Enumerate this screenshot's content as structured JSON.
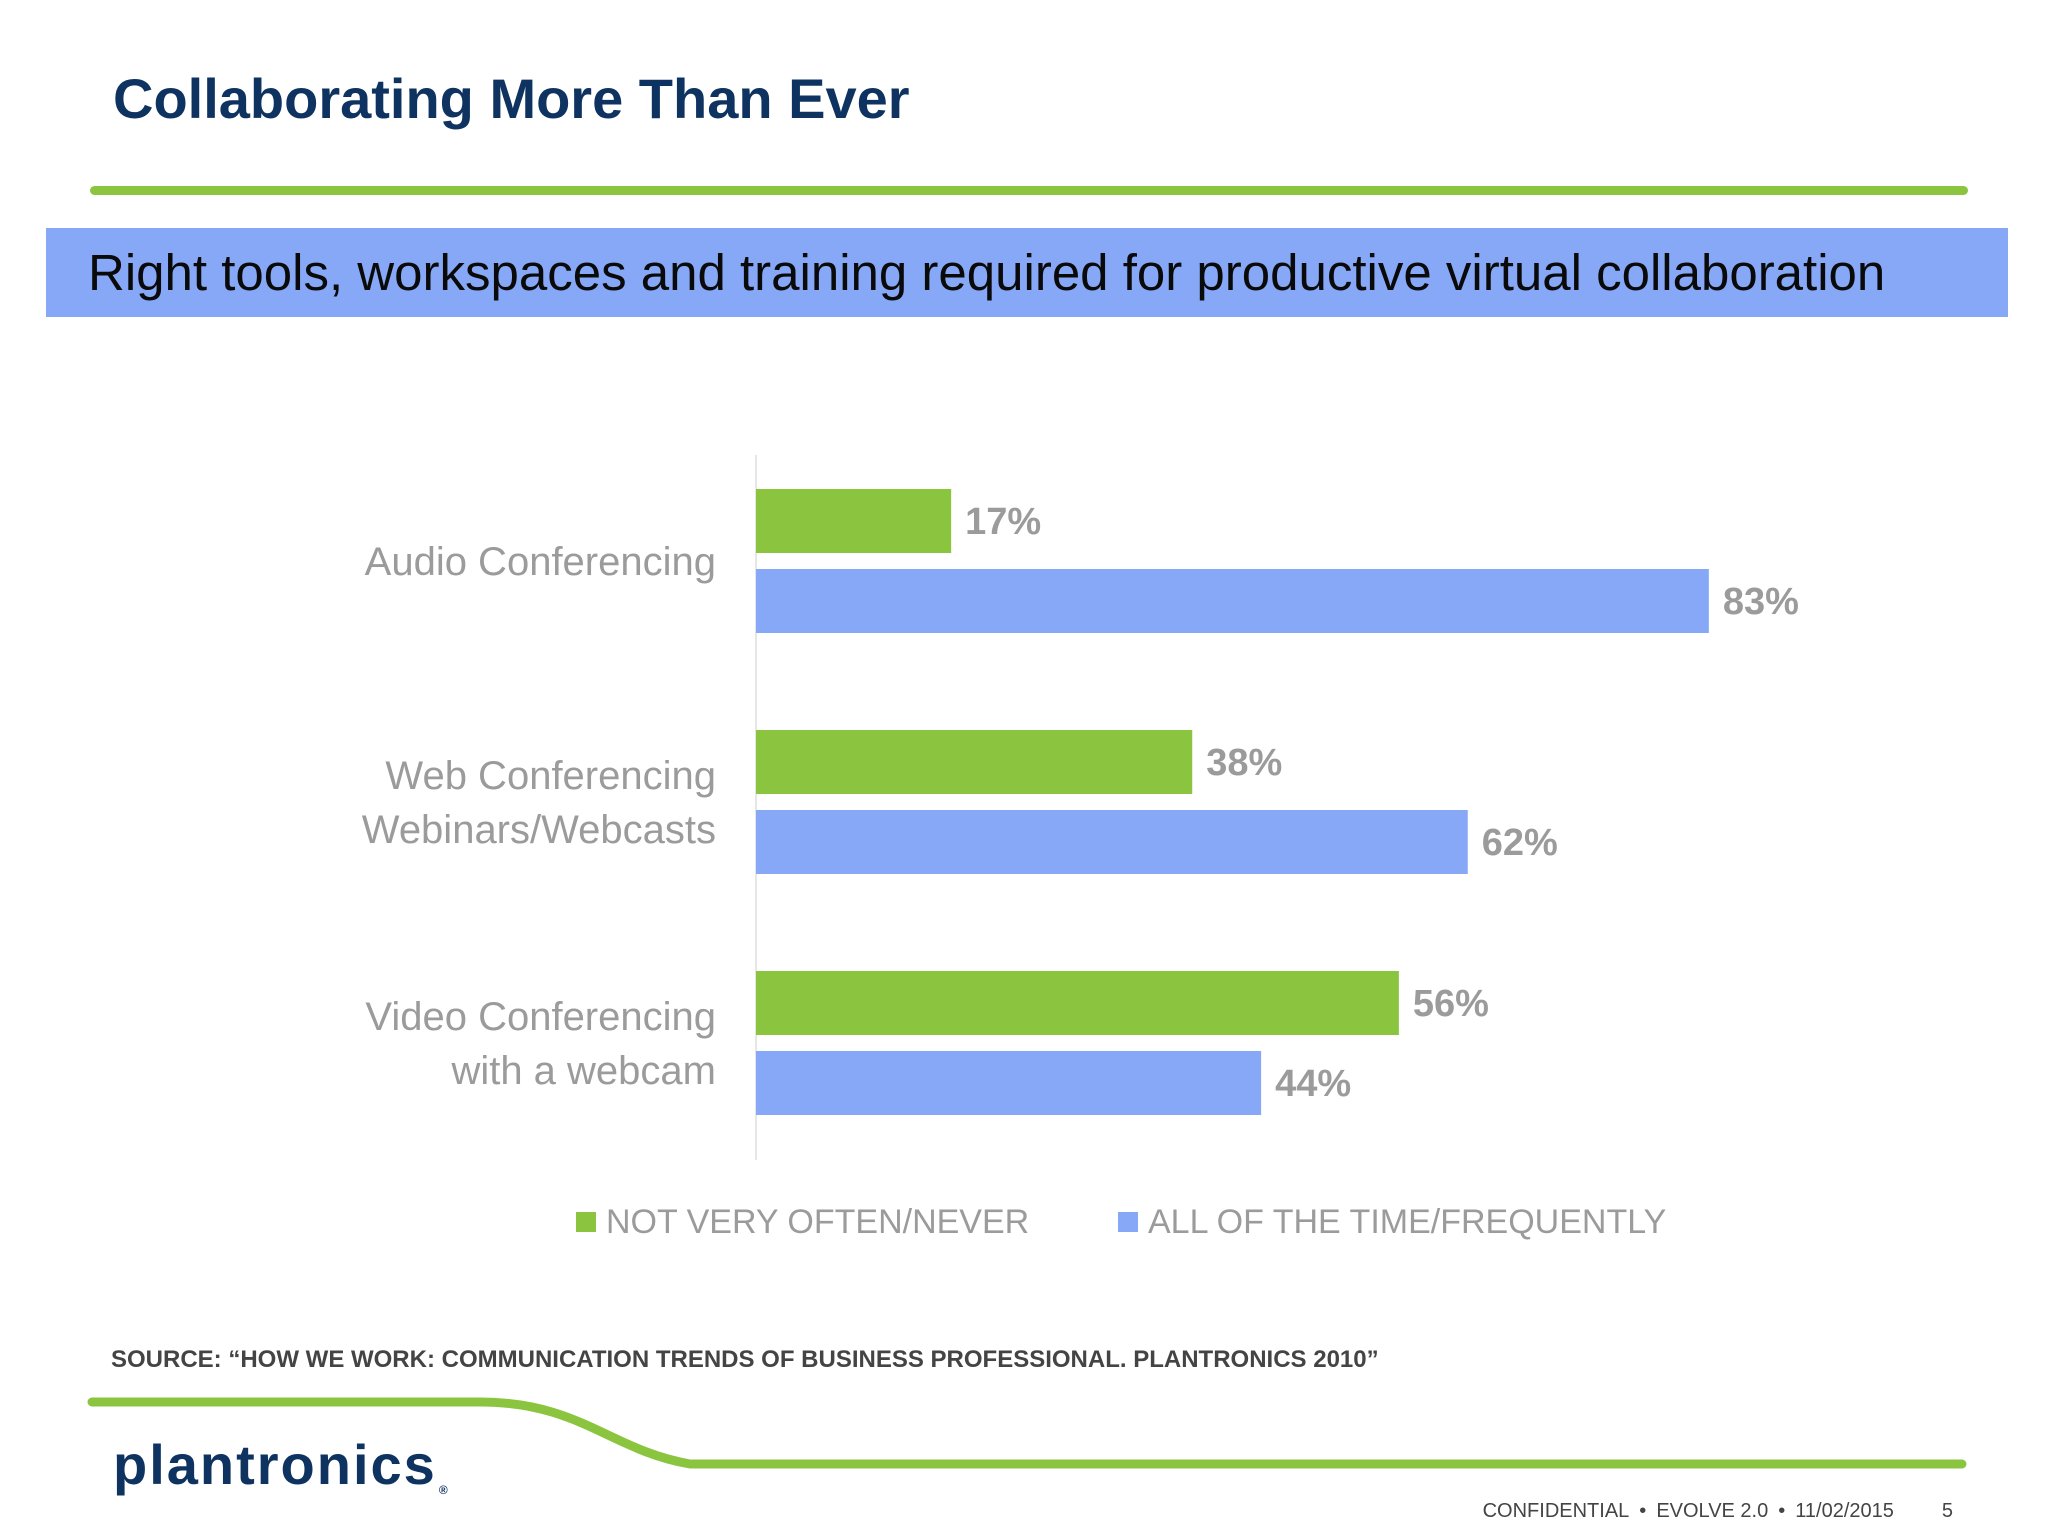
{
  "slide": {
    "title": "Collaborating More Than Ever",
    "banner": "Right tools, workspaces and training required for productive virtual collaboration",
    "source": "SOURCE: “HOW WE WORK: COMMUNICATION TRENDS OF BUSINESS PROFESSIONAL. PLANTRONICS 2010”",
    "logo": "plantronics",
    "logo_mark": "®",
    "footer": {
      "confidential": "CONFIDENTIAL",
      "product": "EVOLVE 2.0",
      "date": "11/02/2015",
      "separator": "•",
      "page": "5"
    }
  },
  "colors": {
    "title": "#0f3361",
    "green": "#8bc53f",
    "blue": "#86a8f7",
    "label_gray": "#9b9b9b"
  },
  "chart_data": {
    "type": "bar",
    "orientation": "horizontal",
    "categories": [
      [
        "Audio Conferencing"
      ],
      [
        "Web Conferencing",
        "Webinars/Webcasts"
      ],
      [
        "Video Conferencing",
        "with a webcam"
      ]
    ],
    "series": [
      {
        "name": "NOT VERY OFTEN/NEVER",
        "color": "#8bc53f",
        "values": [
          17,
          38,
          56
        ],
        "labels": [
          "17%",
          "38%",
          "56%"
        ]
      },
      {
        "name": "ALL OF THE TIME/FREQUENTLY",
        "color": "#86a8f7",
        "values": [
          83,
          62,
          44
        ],
        "labels": [
          "83%",
          "62%",
          "44%"
        ]
      }
    ],
    "xlim": [
      0,
      100
    ],
    "grid": false,
    "legend_position": "bottom"
  }
}
